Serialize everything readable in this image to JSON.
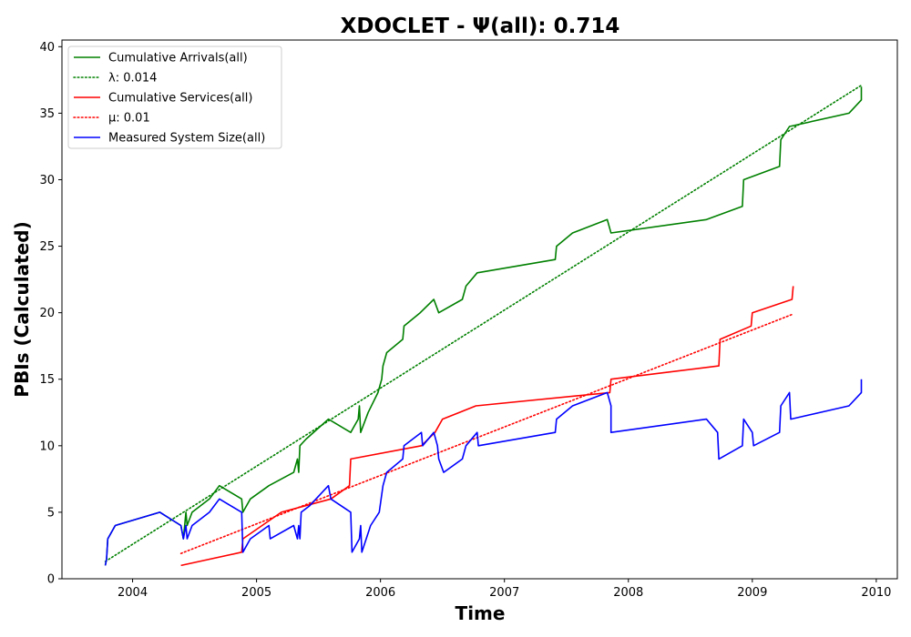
{
  "chart_data": {
    "type": "line",
    "title": "XDOCLET -  Ψ(all): 0.714",
    "xlabel": "Time",
    "ylabel": "PBIs (Calculated)",
    "xlim": [
      2003.43,
      2010.17
    ],
    "ylim": [
      0,
      40.5
    ],
    "x_ticks": [
      "2004",
      "2005",
      "2006",
      "2007",
      "2008",
      "2009",
      "2010"
    ],
    "y_ticks": [
      "0",
      "5",
      "10",
      "15",
      "20",
      "25",
      "30",
      "35",
      "40"
    ],
    "grid": false,
    "legend_position": "top-left",
    "series": [
      {
        "name": "Cumulative Arrivals(all)",
        "color": "#008000",
        "style": "solid",
        "points": [
          [
            2003.78,
            1
          ],
          [
            2003.79,
            1.5
          ],
          [
            2003.8,
            3
          ],
          [
            2003.86,
            4
          ],
          [
            2004.22,
            5
          ],
          [
            2004.39,
            4
          ],
          [
            2004.41,
            3
          ],
          [
            2004.43,
            5
          ],
          [
            2004.44,
            4
          ],
          [
            2004.48,
            5
          ],
          [
            2004.62,
            6
          ],
          [
            2004.7,
            7
          ],
          [
            2004.88,
            6
          ],
          [
            2004.89,
            5
          ],
          [
            2004.95,
            6
          ],
          [
            2005.1,
            7
          ],
          [
            2005.3,
            8
          ],
          [
            2005.33,
            9
          ],
          [
            2005.34,
            8
          ],
          [
            2005.35,
            10
          ],
          [
            2005.4,
            10.5
          ],
          [
            2005.58,
            12
          ],
          [
            2005.76,
            11
          ],
          [
            2005.82,
            12
          ],
          [
            2005.83,
            13
          ],
          [
            2005.84,
            11
          ],
          [
            2005.9,
            12.5
          ],
          [
            2005.98,
            14
          ],
          [
            2006.01,
            15
          ],
          [
            2006.02,
            16
          ],
          [
            2006.05,
            17
          ],
          [
            2006.18,
            18
          ],
          [
            2006.19,
            19
          ],
          [
            2006.32,
            20
          ],
          [
            2006.43,
            21
          ],
          [
            2006.47,
            20
          ],
          [
            2006.66,
            21
          ],
          [
            2006.69,
            22
          ],
          [
            2006.78,
            23
          ],
          [
            2007.41,
            24
          ],
          [
            2007.42,
            25
          ],
          [
            2007.55,
            26
          ],
          [
            2007.83,
            27
          ],
          [
            2007.86,
            26
          ],
          [
            2008.63,
            27
          ],
          [
            2008.92,
            28
          ],
          [
            2008.93,
            30
          ],
          [
            2009.22,
            31
          ],
          [
            2009.23,
            33
          ],
          [
            2009.3,
            34
          ],
          [
            2009.78,
            35
          ],
          [
            2009.88,
            36
          ],
          [
            2009.88,
            37
          ]
        ]
      },
      {
        "name": "λ: 0.014",
        "color": "#008000",
        "style": "dotted",
        "points": [
          [
            2003.78,
            1.3
          ],
          [
            2009.88,
            37.1
          ]
        ]
      },
      {
        "name": "Cumulative Services(all)",
        "color": "#ff0000",
        "style": "solid",
        "points": [
          [
            2004.39,
            1
          ],
          [
            2004.88,
            2
          ],
          [
            2004.89,
            3
          ],
          [
            2005.2,
            5
          ],
          [
            2005.6,
            6
          ],
          [
            2005.75,
            7
          ],
          [
            2005.76,
            9
          ],
          [
            2006.33,
            10
          ],
          [
            2006.44,
            11
          ],
          [
            2006.5,
            12
          ],
          [
            2006.77,
            13
          ],
          [
            2007.85,
            14
          ],
          [
            2007.86,
            15
          ],
          [
            2008.73,
            16
          ],
          [
            2008.74,
            18
          ],
          [
            2008.99,
            19
          ],
          [
            2009.0,
            20
          ],
          [
            2009.32,
            21
          ],
          [
            2009.33,
            22
          ]
        ]
      },
      {
        "name": "μ: 0.01",
        "color": "#ff0000",
        "style": "dotted",
        "points": [
          [
            2004.39,
            1.9
          ],
          [
            2009.33,
            19.9
          ]
        ]
      },
      {
        "name": "Measured System Size(all)",
        "color": "#0000ff",
        "style": "solid",
        "points": [
          [
            2003.78,
            1
          ],
          [
            2003.79,
            1.5
          ],
          [
            2003.8,
            3
          ],
          [
            2003.86,
            4
          ],
          [
            2004.22,
            5
          ],
          [
            2004.39,
            4
          ],
          [
            2004.41,
            3
          ],
          [
            2004.43,
            4
          ],
          [
            2004.44,
            3
          ],
          [
            2004.48,
            4
          ],
          [
            2004.62,
            5
          ],
          [
            2004.7,
            6
          ],
          [
            2004.88,
            5
          ],
          [
            2004.89,
            2
          ],
          [
            2004.95,
            3
          ],
          [
            2005.1,
            4
          ],
          [
            2005.11,
            3
          ],
          [
            2005.3,
            4
          ],
          [
            2005.33,
            3
          ],
          [
            2005.34,
            4
          ],
          [
            2005.35,
            3
          ],
          [
            2005.36,
            5
          ],
          [
            2005.43,
            5.5
          ],
          [
            2005.58,
            7
          ],
          [
            2005.6,
            6
          ],
          [
            2005.76,
            5
          ],
          [
            2005.77,
            2
          ],
          [
            2005.83,
            3
          ],
          [
            2005.84,
            4
          ],
          [
            2005.85,
            2
          ],
          [
            2005.92,
            4
          ],
          [
            2005.99,
            5
          ],
          [
            2006.02,
            7
          ],
          [
            2006.05,
            8
          ],
          [
            2006.18,
            9
          ],
          [
            2006.19,
            10
          ],
          [
            2006.33,
            11
          ],
          [
            2006.34,
            10
          ],
          [
            2006.43,
            11
          ],
          [
            2006.46,
            10
          ],
          [
            2006.47,
            9
          ],
          [
            2006.51,
            8
          ],
          [
            2006.66,
            9
          ],
          [
            2006.69,
            10
          ],
          [
            2006.78,
            11
          ],
          [
            2006.79,
            10
          ],
          [
            2007.41,
            11
          ],
          [
            2007.42,
            12
          ],
          [
            2007.55,
            13
          ],
          [
            2007.83,
            14
          ],
          [
            2007.86,
            13
          ],
          [
            2007.86,
            11
          ],
          [
            2008.63,
            12
          ],
          [
            2008.72,
            11
          ],
          [
            2008.73,
            9
          ],
          [
            2008.92,
            10
          ],
          [
            2008.93,
            12
          ],
          [
            2009.0,
            11
          ],
          [
            2009.01,
            10
          ],
          [
            2009.22,
            11
          ],
          [
            2009.23,
            13
          ],
          [
            2009.3,
            14
          ],
          [
            2009.31,
            12
          ],
          [
            2009.78,
            13
          ],
          [
            2009.88,
            14
          ],
          [
            2009.88,
            15
          ]
        ]
      }
    ]
  }
}
